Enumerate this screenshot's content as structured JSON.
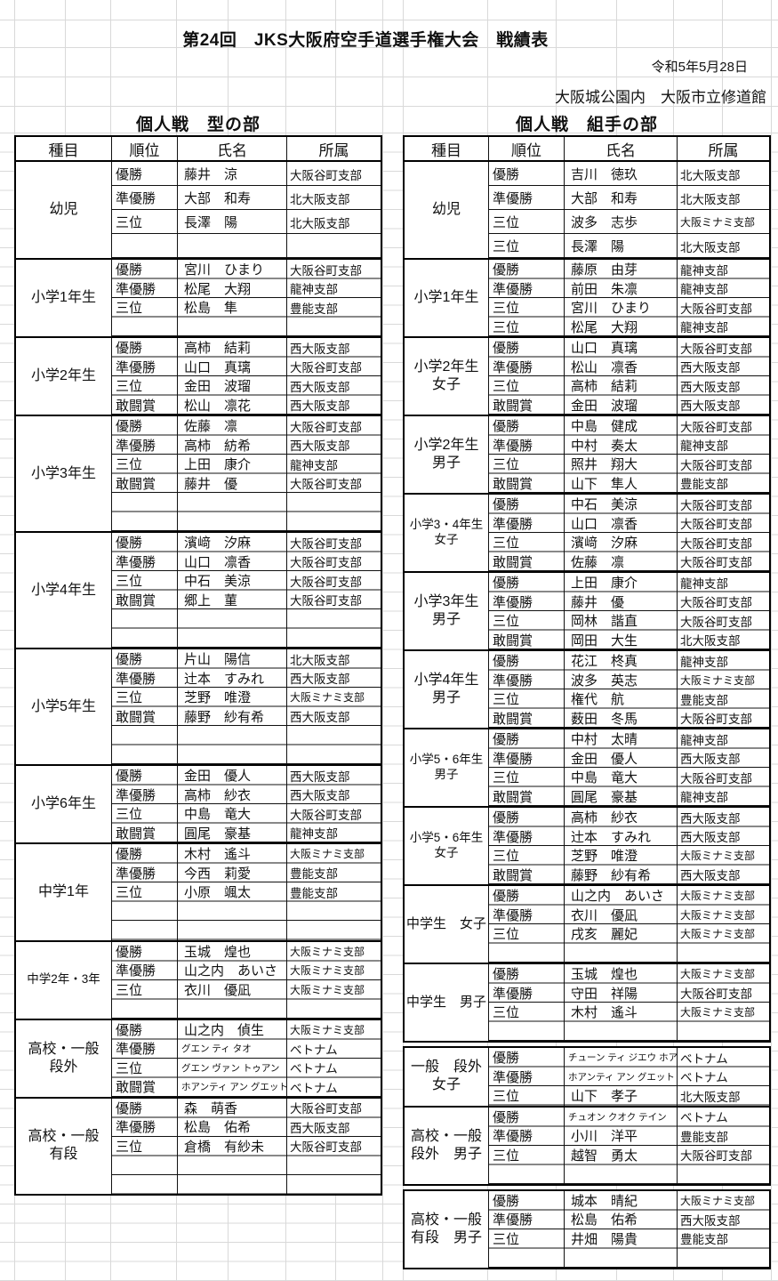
{
  "page": {
    "title": "第24回　JKS大阪府空手道選手権大会　戦績表",
    "date": "令和5年5月28日",
    "venue": "大阪城公園内　大阪市立修道館"
  },
  "colors": {
    "border": "#000000",
    "gridline": "#d9d9d9",
    "text": "#111111"
  },
  "columns": [
    "種目",
    "順位",
    "氏名",
    "所属"
  ],
  "tables": [
    {
      "id": "kata",
      "title": "個人戦　型の部",
      "blocks": [
        [
          {
            "category": "幼児",
            "tall": true,
            "rows": [
              {
                "rank": "優勝",
                "name": "藤井　涼",
                "org": "大阪谷町支部"
              },
              {
                "rank": "準優勝",
                "name": "大部　和寿",
                "org": "北大阪支部"
              },
              {
                "rank": "三位",
                "name": "長澤　陽",
                "org": "北大阪支部"
              },
              {
                "rank": "",
                "name": "",
                "org": ""
              }
            ]
          },
          {
            "category": "小学1年生",
            "rows": [
              {
                "rank": "優勝",
                "name": "宮川　ひまり",
                "org": "大阪谷町支部"
              },
              {
                "rank": "準優勝",
                "name": "松尾　大翔",
                "org": "龍神支部"
              },
              {
                "rank": "三位",
                "name": "松島　隼",
                "org": "豊能支部"
              },
              {
                "rank": "",
                "name": "",
                "org": ""
              }
            ]
          },
          {
            "category": "小学2年生",
            "rows": [
              {
                "rank": "優勝",
                "name": "高柿　結莉",
                "org": "西大阪支部"
              },
              {
                "rank": "準優勝",
                "name": "山口　真璃",
                "org": "大阪谷町支部"
              },
              {
                "rank": "三位",
                "name": "金田　波瑠",
                "org": "西大阪支部"
              },
              {
                "rank": "敢闘賞",
                "name": "松山　凛花",
                "org": "西大阪支部"
              }
            ]
          },
          {
            "category": "小学3年生",
            "rows": [
              {
                "rank": "優勝",
                "name": "佐藤　凛",
                "org": "大阪谷町支部"
              },
              {
                "rank": "準優勝",
                "name": "高柿　紡希",
                "org": "西大阪支部"
              },
              {
                "rank": "三位",
                "name": "上田　康介",
                "org": "龍神支部"
              },
              {
                "rank": "敢闘賞",
                "name": "藤井　優",
                "org": "大阪谷町支部"
              },
              {
                "rank": "",
                "name": "",
                "org": ""
              },
              {
                "rank": "",
                "name": "",
                "org": ""
              }
            ]
          },
          {
            "category": "小学4年生",
            "rows": [
              {
                "rank": "優勝",
                "name": "濱﨑　汐麻",
                "org": "大阪谷町支部"
              },
              {
                "rank": "準優勝",
                "name": "山口　凛香",
                "org": "大阪谷町支部"
              },
              {
                "rank": "三位",
                "name": "中石　美涼",
                "org": "大阪谷町支部"
              },
              {
                "rank": "敢闘賞",
                "name": "郷上　菫",
                "org": "大阪谷町支部"
              },
              {
                "rank": "",
                "name": "",
                "org": ""
              },
              {
                "rank": "",
                "name": "",
                "org": ""
              }
            ]
          },
          {
            "category": "小学5年生",
            "rows": [
              {
                "rank": "優勝",
                "name": "片山　陽信",
                "org": "北大阪支部"
              },
              {
                "rank": "準優勝",
                "name": "辻本　すみれ",
                "org": "西大阪支部"
              },
              {
                "rank": "三位",
                "name": "芝野　唯澄",
                "org": "大阪ミナミ支部"
              },
              {
                "rank": "敢闘賞",
                "name": "藤野　紗有希",
                "org": "西大阪支部"
              },
              {
                "rank": "",
                "name": "",
                "org": ""
              },
              {
                "rank": "",
                "name": "",
                "org": ""
              }
            ]
          },
          {
            "category": "小学6年生",
            "rows": [
              {
                "rank": "優勝",
                "name": "金田　優人",
                "org": "西大阪支部"
              },
              {
                "rank": "準優勝",
                "name": "高柿　紗衣",
                "org": "西大阪支部"
              },
              {
                "rank": "三位",
                "name": "中島　竜大",
                "org": "大阪谷町支部"
              },
              {
                "rank": "敢闘賞",
                "name": "圓尾　豪基",
                "org": "龍神支部"
              }
            ]
          },
          {
            "category": "中学1年",
            "rows": [
              {
                "rank": "優勝",
                "name": "木村　遙斗",
                "org": "大阪ミナミ支部"
              },
              {
                "rank": "準優勝",
                "name": "今西　莉愛",
                "org": "豊能支部"
              },
              {
                "rank": "三位",
                "name": "小原　颯太",
                "org": "豊能支部"
              },
              {
                "rank": "",
                "name": "",
                "org": ""
              },
              {
                "rank": "",
                "name": "",
                "org": ""
              }
            ]
          },
          {
            "category": "中学2年・3年",
            "rows": [
              {
                "rank": "優勝",
                "name": "玉城　煌也",
                "org": "大阪ミナミ支部"
              },
              {
                "rank": "準優勝",
                "name": "山之内　あいさ",
                "org": "大阪ミナミ支部"
              },
              {
                "rank": "三位",
                "name": "衣川　優凪",
                "org": "大阪ミナミ支部"
              },
              {
                "rank": "",
                "name": "",
                "org": ""
              }
            ]
          },
          {
            "category": "高校・一般\n段外",
            "rows": [
              {
                "rank": "優勝",
                "name": "山之内　偵生",
                "org": "大阪ミナミ支部"
              },
              {
                "rank": "準優勝",
                "name": "グエン ティ タオ",
                "org": "ベトナム"
              },
              {
                "rank": "三位",
                "name": "グエン ヴァン トゥアン",
                "org": "ベトナム"
              },
              {
                "rank": "敢闘賞",
                "name": "ホアンティ アン グエット",
                "org": "ベトナム"
              }
            ]
          },
          {
            "category": "高校・一般\n有段",
            "rows": [
              {
                "rank": "優勝",
                "name": "森　萌香",
                "org": "大阪谷町支部"
              },
              {
                "rank": "準優勝",
                "name": "松島　佑希",
                "org": "西大阪支部"
              },
              {
                "rank": "三位",
                "name": "倉橋　有紗未",
                "org": "大阪谷町支部"
              },
              {
                "rank": "",
                "name": "",
                "org": ""
              },
              {
                "rank": "",
                "name": "",
                "org": ""
              }
            ]
          }
        ]
      ]
    },
    {
      "id": "kumite",
      "title": "個人戦　組手の部",
      "blocks": [
        [
          {
            "category": "幼児",
            "tall": true,
            "rows": [
              {
                "rank": "優勝",
                "name": "吉川　徳玖",
                "org": "北大阪支部"
              },
              {
                "rank": "準優勝",
                "name": "大部　和寿",
                "org": "北大阪支部"
              },
              {
                "rank": "三位",
                "name": "波多　志歩",
                "org": "大阪ミナミ支部"
              },
              {
                "rank": "三位",
                "name": "長澤　陽",
                "org": "北大阪支部"
              }
            ]
          },
          {
            "category": "小学1年生",
            "rows": [
              {
                "rank": "優勝",
                "name": "藤原　由芽",
                "org": "龍神支部"
              },
              {
                "rank": "準優勝",
                "name": "前田　朱凛",
                "org": "龍神支部"
              },
              {
                "rank": "三位",
                "name": "宮川　ひまり",
                "org": "大阪谷町支部"
              },
              {
                "rank": "三位",
                "name": "松尾　大翔",
                "org": "龍神支部"
              }
            ]
          },
          {
            "category": "小学2年生\n女子",
            "rows": [
              {
                "rank": "優勝",
                "name": "山口　真璃",
                "org": "大阪谷町支部"
              },
              {
                "rank": "準優勝",
                "name": "松山　凛香",
                "org": "西大阪支部"
              },
              {
                "rank": "三位",
                "name": "高柿　結莉",
                "org": "西大阪支部"
              },
              {
                "rank": "敢闘賞",
                "name": "金田　波瑠",
                "org": "西大阪支部"
              }
            ]
          },
          {
            "category": "小学2年生\n男子",
            "rows": [
              {
                "rank": "優勝",
                "name": "中島　健成",
                "org": "大阪谷町支部"
              },
              {
                "rank": "準優勝",
                "name": "中村　奏太",
                "org": "龍神支部"
              },
              {
                "rank": "三位",
                "name": "照井　翔大",
                "org": "大阪谷町支部"
              },
              {
                "rank": "敢闘賞",
                "name": "山下　隼人",
                "org": "豊能支部"
              }
            ]
          },
          {
            "category": "小学3・4年生\n女子",
            "rows": [
              {
                "rank": "優勝",
                "name": "中石　美涼",
                "org": "大阪谷町支部"
              },
              {
                "rank": "準優勝",
                "name": "山口　凛香",
                "org": "大阪谷町支部"
              },
              {
                "rank": "三位",
                "name": "濱﨑　汐麻",
                "org": "大阪谷町支部"
              },
              {
                "rank": "敢闘賞",
                "name": "佐藤　凛",
                "org": "大阪谷町支部"
              }
            ]
          },
          {
            "category": "小学3年生\n男子",
            "rows": [
              {
                "rank": "優勝",
                "name": "上田　康介",
                "org": "龍神支部"
              },
              {
                "rank": "準優勝",
                "name": "藤井　優",
                "org": "大阪谷町支部"
              },
              {
                "rank": "三位",
                "name": "岡林　諧直",
                "org": "大阪谷町支部"
              },
              {
                "rank": "敢闘賞",
                "name": "岡田　大生",
                "org": "北大阪支部"
              }
            ]
          },
          {
            "category": "小学4年生\n男子",
            "rows": [
              {
                "rank": "優勝",
                "name": "花江　柊真",
                "org": "龍神支部"
              },
              {
                "rank": "準優勝",
                "name": "波多　英志",
                "org": "大阪ミナミ支部"
              },
              {
                "rank": "三位",
                "name": "権代　航",
                "org": "豊能支部"
              },
              {
                "rank": "敢闘賞",
                "name": "薮田　冬馬",
                "org": "大阪谷町支部"
              }
            ]
          },
          {
            "category": "小学5・6年生\n男子",
            "rows": [
              {
                "rank": "優勝",
                "name": "中村　太晴",
                "org": "龍神支部"
              },
              {
                "rank": "準優勝",
                "name": "金田　優人",
                "org": "西大阪支部"
              },
              {
                "rank": "三位",
                "name": "中島　竜大",
                "org": "大阪谷町支部"
              },
              {
                "rank": "敢闘賞",
                "name": "圓尾　豪基",
                "org": "龍神支部"
              }
            ]
          },
          {
            "category": "小学5・6年生\n女子",
            "rows": [
              {
                "rank": "優勝",
                "name": "高柿　紗衣",
                "org": "西大阪支部"
              },
              {
                "rank": "準優勝",
                "name": "辻本　すみれ",
                "org": "西大阪支部"
              },
              {
                "rank": "三位",
                "name": "芝野　唯澄",
                "org": "大阪ミナミ支部"
              },
              {
                "rank": "敢闘賞",
                "name": "藤野　紗有希",
                "org": "西大阪支部"
              }
            ]
          },
          {
            "category": "中学生　女子",
            "rows": [
              {
                "rank": "優勝",
                "name": "山之内　あいさ",
                "org": "大阪ミナミ支部"
              },
              {
                "rank": "準優勝",
                "name": "衣川　優凪",
                "org": "大阪ミナミ支部"
              },
              {
                "rank": "三位",
                "name": "戌亥　麗妃",
                "org": "大阪ミナミ支部"
              },
              {
                "rank": "",
                "name": "",
                "org": ""
              }
            ]
          },
          {
            "category": "中学生　男子",
            "rows": [
              {
                "rank": "優勝",
                "name": "玉城　煌也",
                "org": "大阪ミナミ支部"
              },
              {
                "rank": "準優勝",
                "name": "守田　祥陽",
                "org": "大阪谷町支部"
              },
              {
                "rank": "三位",
                "name": "木村　遙斗",
                "org": "大阪ミナミ支部"
              },
              {
                "rank": "",
                "name": "",
                "org": ""
              }
            ]
          }
        ],
        [
          {
            "category": "一般　段外\n女子",
            "rows": [
              {
                "rank": "優勝",
                "name": "チューン ティ ジエウ ホア",
                "org": "ベトナム"
              },
              {
                "rank": "準優勝",
                "name": "ホアンティ アン グエット",
                "org": "ベトナム"
              },
              {
                "rank": "三位",
                "name": "山下　孝子",
                "org": "北大阪支部"
              }
            ]
          },
          {
            "category": "高校・一般\n段外　男子",
            "rows": [
              {
                "rank": "優勝",
                "name": "チュオン クオク テイン",
                "org": "ベトナム"
              },
              {
                "rank": "準優勝",
                "name": "小川　洋平",
                "org": "豊能支部"
              },
              {
                "rank": "三位",
                "name": "越智　勇太",
                "org": "大阪谷町支部"
              },
              {
                "rank": "",
                "name": "",
                "org": ""
              }
            ]
          }
        ],
        [
          {
            "category": "高校・一般\n有段　男子",
            "rows": [
              {
                "rank": "優勝",
                "name": "城本　晴紀",
                "org": "大阪ミナミ支部"
              },
              {
                "rank": "準優勝",
                "name": "松島　佑希",
                "org": "西大阪支部"
              },
              {
                "rank": "三位",
                "name": "井畑　陽貴",
                "org": "豊能支部"
              },
              {
                "rank": "",
                "name": "",
                "org": ""
              }
            ]
          }
        ]
      ]
    }
  ]
}
